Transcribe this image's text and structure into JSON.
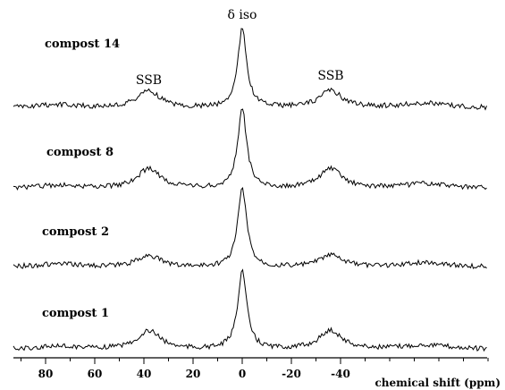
{
  "chart_data": {
    "type": "line",
    "title": "",
    "xlabel": "chemical shift (ppm)",
    "ylabel": "",
    "x_range": [
      90,
      -100
    ],
    "x_axis_reversed": true,
    "x_ticks": [
      80,
      60,
      40,
      20,
      0,
      -20,
      -40
    ],
    "x_tick_labels": [
      "80",
      "60",
      "40",
      "20",
      "0",
      "-20",
      "-40"
    ],
    "grid": false,
    "annotations": [
      {
        "text": "δ iso",
        "x": 0
      },
      {
        "text": "SSB",
        "x": 38
      },
      {
        "text": "SSB",
        "x": -36
      }
    ],
    "peaks_ppm": {
      "isotropic": 0,
      "spinning_sidebands": [
        38,
        -36
      ]
    },
    "series": [
      {
        "name": "compost 14",
        "peak_height": 1.0,
        "ssb_height": 0.22
      },
      {
        "name": "compost 8",
        "peak_height": 1.0,
        "ssb_height": 0.25
      },
      {
        "name": "compost 2",
        "peak_height": 1.0,
        "ssb_height": 0.15
      },
      {
        "name": "compost 1",
        "peak_height": 1.0,
        "ssb_height": 0.24
      }
    ]
  }
}
